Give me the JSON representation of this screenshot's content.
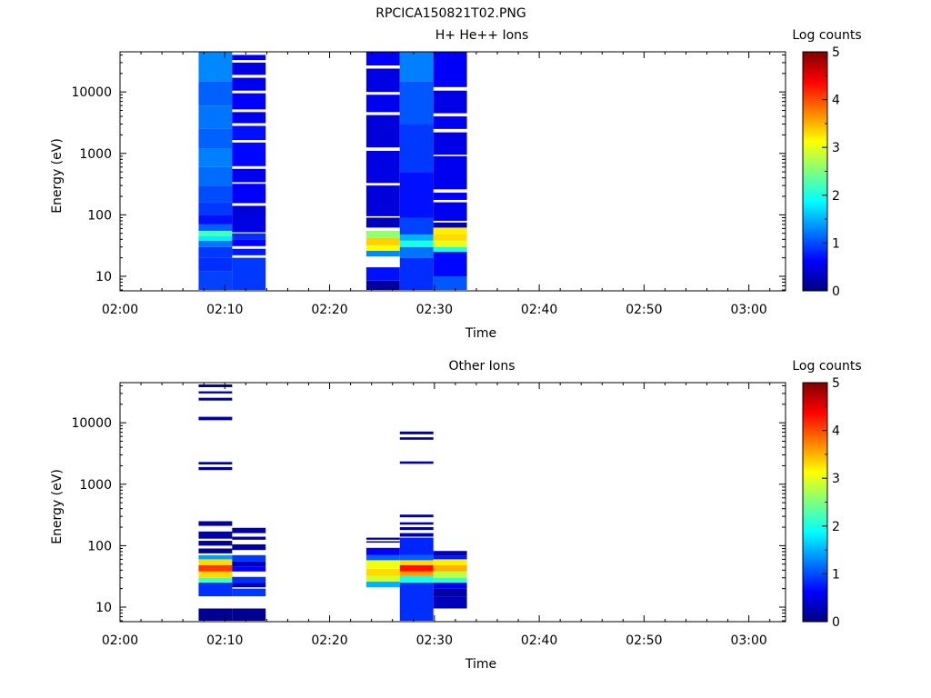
{
  "figure": {
    "title": "RPCICA150821T02.PNG"
  },
  "colormap": {
    "stops": [
      "#00007f",
      "#0000ff",
      "#007fff",
      "#00ffff",
      "#7fff7f",
      "#ffff00",
      "#ff7f00",
      "#ff0000",
      "#7f0000"
    ],
    "missing": "#ffffff"
  },
  "chart_data": [
    {
      "type": "heatmap",
      "title": "H+ He++ Ions",
      "xlabel": "Time",
      "ylabel": "Energy (eV)",
      "colorbar_label": "Log counts",
      "x_tick_labels": [
        "02:00",
        "02:10",
        "02:20",
        "02:30",
        "02:40",
        "02:50",
        "03:00"
      ],
      "x_tick_minutes": [
        0,
        10,
        20,
        30,
        40,
        50,
        60
      ],
      "xlim_minutes": [
        0,
        63.5
      ],
      "y_scale": "log",
      "ylim": [
        5.8,
        45000
      ],
      "y_tick_labels": [
        "10",
        "100",
        "1000",
        "10000"
      ],
      "y_tick_values": [
        10,
        100,
        1000,
        10000
      ],
      "colorbar_range": [
        0,
        5
      ],
      "colorbar_ticks": [
        "0",
        "1",
        "2",
        "3",
        "4",
        "5"
      ],
      "columns": [
        {
          "t_start": 7.5,
          "t_end": 10.7,
          "bins": [
            {
              "e_lo": 6,
              "e_hi": 12,
              "v": 0.95
            },
            {
              "e_lo": 12,
              "e_hi": 20,
              "v": 0.85
            },
            {
              "e_lo": 20,
              "e_hi": 30,
              "v": 0.9
            },
            {
              "e_lo": 30,
              "e_hi": 38,
              "v": 1.2
            },
            {
              "e_lo": 38,
              "e_hi": 45,
              "v": 1.8
            },
            {
              "e_lo": 45,
              "e_hi": 55,
              "v": 2.2
            },
            {
              "e_lo": 55,
              "e_hi": 70,
              "v": 1.1
            },
            {
              "e_lo": 70,
              "e_hi": 100,
              "v": 0.7
            },
            {
              "e_lo": 100,
              "e_hi": 160,
              "v": 0.9
            },
            {
              "e_lo": 160,
              "e_hi": 300,
              "v": 1.0
            },
            {
              "e_lo": 300,
              "e_hi": 600,
              "v": 1.15
            },
            {
              "e_lo": 600,
              "e_hi": 1200,
              "v": 1.25
            },
            {
              "e_lo": 1200,
              "e_hi": 2500,
              "v": 1.1
            },
            {
              "e_lo": 2500,
              "e_hi": 6000,
              "v": 1.2
            },
            {
              "e_lo": 6000,
              "e_hi": 15000,
              "v": 1.1
            },
            {
              "e_lo": 15000,
              "e_hi": 45000,
              "v": 1.3
            }
          ]
        },
        {
          "t_start": 10.7,
          "t_end": 13.9,
          "bins": [
            {
              "e_lo": 6,
              "e_hi": 20,
              "v": 0.9
            },
            {
              "e_lo": 22,
              "e_hi": 28,
              "v": 0.75
            },
            {
              "e_lo": 31,
              "e_hi": 40,
              "v": 0.6
            },
            {
              "e_lo": 40,
              "e_hi": 50,
              "v": 0.85
            },
            {
              "e_lo": 52,
              "e_hi": 90,
              "v": 0.5
            },
            {
              "e_lo": 90,
              "e_hi": 140,
              "v": 0.45
            },
            {
              "e_lo": 155,
              "e_hi": 320,
              "v": 0.6
            },
            {
              "e_lo": 340,
              "e_hi": 560,
              "v": 0.55
            },
            {
              "e_lo": 620,
              "e_hi": 1500,
              "v": 0.65
            },
            {
              "e_lo": 1650,
              "e_hi": 2800,
              "v": 0.7
            },
            {
              "e_lo": 3100,
              "e_hi": 4700,
              "v": 0.55
            },
            {
              "e_lo": 5200,
              "e_hi": 9500,
              "v": 0.6
            },
            {
              "e_lo": 10500,
              "e_hi": 17000,
              "v": 0.55
            },
            {
              "e_lo": 19000,
              "e_hi": 30000,
              "v": 0.5
            },
            {
              "e_lo": 33000,
              "e_hi": 40000,
              "v": 0.55
            }
          ]
        },
        {
          "t_start": 23.5,
          "t_end": 26.7,
          "bins": [
            {
              "e_lo": 6,
              "e_hi": 8.5,
              "v": 0.15
            },
            {
              "e_lo": 8.5,
              "e_hi": 14,
              "v": 0.7
            },
            {
              "e_lo": 21,
              "e_hi": 26,
              "v": 1.3
            },
            {
              "e_lo": 26,
              "e_hi": 32,
              "v": 3.1
            },
            {
              "e_lo": 32,
              "e_hi": 42,
              "v": 3.35
            },
            {
              "e_lo": 42,
              "e_hi": 55,
              "v": 2.6
            },
            {
              "e_lo": 62,
              "e_hi": 90,
              "v": 0.3
            },
            {
              "e_lo": 95,
              "e_hi": 300,
              "v": 0.45
            },
            {
              "e_lo": 330,
              "e_hi": 1100,
              "v": 0.5
            },
            {
              "e_lo": 1250,
              "e_hi": 4200,
              "v": 0.45
            },
            {
              "e_lo": 4700,
              "e_hi": 9000,
              "v": 0.55
            },
            {
              "e_lo": 10000,
              "e_hi": 24000,
              "v": 0.5
            },
            {
              "e_lo": 27000,
              "e_hi": 45000,
              "v": 0.6
            }
          ]
        },
        {
          "t_start": 26.7,
          "t_end": 29.9,
          "bins": [
            {
              "e_lo": 6,
              "e_hi": 20,
              "v": 0.85
            },
            {
              "e_lo": 20,
              "e_hi": 30,
              "v": 1.2
            },
            {
              "e_lo": 30,
              "e_hi": 38,
              "v": 2.0
            },
            {
              "e_lo": 38,
              "e_hi": 48,
              "v": 1.5
            },
            {
              "e_lo": 48,
              "e_hi": 90,
              "v": 0.95
            },
            {
              "e_lo": 90,
              "e_hi": 500,
              "v": 0.7
            },
            {
              "e_lo": 500,
              "e_hi": 3000,
              "v": 0.9
            },
            {
              "e_lo": 3000,
              "e_hi": 15000,
              "v": 1.05
            },
            {
              "e_lo": 15000,
              "e_hi": 45000,
              "v": 1.25
            }
          ]
        },
        {
          "t_start": 29.9,
          "t_end": 33.1,
          "bins": [
            {
              "e_lo": 6,
              "e_hi": 10,
              "v": 1.05
            },
            {
              "e_lo": 10,
              "e_hi": 25,
              "v": 0.65
            },
            {
              "e_lo": 25,
              "e_hi": 30,
              "v": 2.0
            },
            {
              "e_lo": 30,
              "e_hi": 38,
              "v": 3.0
            },
            {
              "e_lo": 38,
              "e_hi": 48,
              "v": 3.3
            },
            {
              "e_lo": 48,
              "e_hi": 62,
              "v": 3.2
            },
            {
              "e_lo": 62,
              "e_hi": 75,
              "v": 0.3
            },
            {
              "e_lo": 80,
              "e_hi": 160,
              "v": 0.55
            },
            {
              "e_lo": 175,
              "e_hi": 230,
              "v": 0.6
            },
            {
              "e_lo": 260,
              "e_hi": 900,
              "v": 0.55
            },
            {
              "e_lo": 950,
              "e_hi": 2200,
              "v": 0.5
            },
            {
              "e_lo": 2500,
              "e_hi": 4000,
              "v": 0.55
            },
            {
              "e_lo": 4500,
              "e_hi": 10500,
              "v": 0.5
            },
            {
              "e_lo": 12000,
              "e_hi": 45000,
              "v": 0.6
            }
          ]
        }
      ]
    },
    {
      "type": "heatmap",
      "title": "Other Ions",
      "xlabel": "Time",
      "ylabel": "Energy (eV)",
      "colorbar_label": "Log counts",
      "x_tick_labels": [
        "02:00",
        "02:10",
        "02:20",
        "02:30",
        "02:40",
        "02:50",
        "03:00"
      ],
      "x_tick_minutes": [
        0,
        10,
        20,
        30,
        40,
        50,
        60
      ],
      "xlim_minutes": [
        0,
        63.5
      ],
      "y_scale": "log",
      "ylim": [
        5.8,
        45000
      ],
      "y_tick_labels": [
        "10",
        "100",
        "1000",
        "10000"
      ],
      "y_tick_values": [
        10,
        100,
        1000,
        10000
      ],
      "colorbar_range": [
        0,
        5
      ],
      "colorbar_ticks": [
        "0",
        "1",
        "2",
        "3",
        "4",
        "5"
      ],
      "columns": [
        {
          "t_start": 7.5,
          "t_end": 10.7,
          "bins": [
            {
              "e_lo": 6,
              "e_hi": 9.5,
              "v": 0.1
            },
            {
              "e_lo": 15,
              "e_hi": 25,
              "v": 0.85
            },
            {
              "e_lo": 25,
              "e_hi": 30,
              "v": 2.2
            },
            {
              "e_lo": 30,
              "e_hi": 38,
              "v": 3.3
            },
            {
              "e_lo": 38,
              "e_hi": 48,
              "v": 4.1
            },
            {
              "e_lo": 48,
              "e_hi": 60,
              "v": 3.3
            },
            {
              "e_lo": 60,
              "e_hi": 70,
              "v": 1.4
            },
            {
              "e_lo": 75,
              "e_hi": 90,
              "v": 0.1
            },
            {
              "e_lo": 100,
              "e_hi": 120,
              "v": 0.15
            },
            {
              "e_lo": 130,
              "e_hi": 170,
              "v": 0.2
            },
            {
              "e_lo": 210,
              "e_hi": 250,
              "v": 0.15
            },
            {
              "e_lo": 1700,
              "e_hi": 1900,
              "v": 0.2
            },
            {
              "e_lo": 2100,
              "e_hi": 2300,
              "v": 0.15
            },
            {
              "e_lo": 11000,
              "e_hi": 12500,
              "v": 0.15
            },
            {
              "e_lo": 23000,
              "e_hi": 25500,
              "v": 0.15
            },
            {
              "e_lo": 30000,
              "e_hi": 32500,
              "v": 0.2
            },
            {
              "e_lo": 38000,
              "e_hi": 42000,
              "v": 0.15
            }
          ]
        },
        {
          "t_start": 10.7,
          "t_end": 13.9,
          "bins": [
            {
              "e_lo": 6,
              "e_hi": 9.5,
              "v": 0.1
            },
            {
              "e_lo": 15,
              "e_hi": 20,
              "v": 0.9
            },
            {
              "e_lo": 21,
              "e_hi": 25,
              "v": 0.3
            },
            {
              "e_lo": 25,
              "e_hi": 31,
              "v": 0.85
            },
            {
              "e_lo": 38,
              "e_hi": 46,
              "v": 0.6
            },
            {
              "e_lo": 46,
              "e_hi": 55,
              "v": 0.3
            },
            {
              "e_lo": 55,
              "e_hi": 70,
              "v": 0.9
            },
            {
              "e_lo": 85,
              "e_hi": 105,
              "v": 0.2
            },
            {
              "e_lo": 125,
              "e_hi": 140,
              "v": 0.15
            },
            {
              "e_lo": 160,
              "e_hi": 195,
              "v": 0.2
            }
          ]
        },
        {
          "t_start": 23.5,
          "t_end": 26.7,
          "bins": [
            {
              "e_lo": 21,
              "e_hi": 26,
              "v": 1.5
            },
            {
              "e_lo": 26,
              "e_hi": 32,
              "v": 2.9
            },
            {
              "e_lo": 32,
              "e_hi": 42,
              "v": 3.3
            },
            {
              "e_lo": 42,
              "e_hi": 58,
              "v": 3.05
            },
            {
              "e_lo": 58,
              "e_hi": 70,
              "v": 1.1
            },
            {
              "e_lo": 70,
              "e_hi": 92,
              "v": 0.6
            },
            {
              "e_lo": 112,
              "e_hi": 118,
              "v": 0.15
            },
            {
              "e_lo": 125,
              "e_hi": 135,
              "v": 0.2
            }
          ]
        },
        {
          "t_start": 26.7,
          "t_end": 29.9,
          "bins": [
            {
              "e_lo": 6,
              "e_hi": 25,
              "v": 0.85
            },
            {
              "e_lo": 25,
              "e_hi": 32,
              "v": 2.0
            },
            {
              "e_lo": 32,
              "e_hi": 38,
              "v": 3.6
            },
            {
              "e_lo": 38,
              "e_hi": 48,
              "v": 4.3
            },
            {
              "e_lo": 48,
              "e_hi": 58,
              "v": 3.3
            },
            {
              "e_lo": 58,
              "e_hi": 70,
              "v": 1.1
            },
            {
              "e_lo": 70,
              "e_hi": 135,
              "v": 0.8
            },
            {
              "e_lo": 140,
              "e_hi": 160,
              "v": 0.2
            },
            {
              "e_lo": 180,
              "e_hi": 200,
              "v": 0.15
            },
            {
              "e_lo": 220,
              "e_hi": 240,
              "v": 0.2
            },
            {
              "e_lo": 290,
              "e_hi": 320,
              "v": 0.2
            },
            {
              "e_lo": 2150,
              "e_hi": 2350,
              "v": 0.2
            },
            {
              "e_lo": 5300,
              "e_hi": 5800,
              "v": 0.15
            },
            {
              "e_lo": 6500,
              "e_hi": 7200,
              "v": 0.15
            }
          ]
        },
        {
          "t_start": 29.9,
          "t_end": 33.1,
          "bins": [
            {
              "e_lo": 9.5,
              "e_hi": 15,
              "v": 0.3
            },
            {
              "e_lo": 15,
              "e_hi": 20,
              "v": 0.2
            },
            {
              "e_lo": 20,
              "e_hi": 25,
              "v": 0.55
            },
            {
              "e_lo": 25,
              "e_hi": 30,
              "v": 2.1
            },
            {
              "e_lo": 30,
              "e_hi": 38,
              "v": 2.8
            },
            {
              "e_lo": 38,
              "e_hi": 48,
              "v": 3.5
            },
            {
              "e_lo": 48,
              "e_hi": 60,
              "v": 3.2
            },
            {
              "e_lo": 60,
              "e_hi": 68,
              "v": 0.75
            },
            {
              "e_lo": 68,
              "e_hi": 82,
              "v": 0.3
            }
          ]
        }
      ]
    }
  ]
}
